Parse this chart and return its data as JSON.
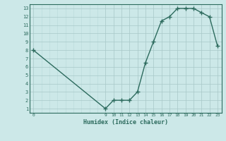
{
  "x": [
    0,
    9,
    10,
    11,
    12,
    13,
    14,
    15,
    16,
    17,
    18,
    19,
    20,
    21,
    22,
    23
  ],
  "y": [
    8,
    1,
    2,
    2,
    2,
    3,
    6.5,
    9,
    11.5,
    12,
    13,
    13,
    13,
    12.5,
    12,
    8.5
  ],
  "line_color": "#2d6b5e",
  "bg_color": "#cce8e8",
  "xlabel": "Humidex (Indice chaleur)",
  "xlim": [
    -0.5,
    23.5
  ],
  "ylim": [
    0.5,
    13.5
  ],
  "yticks": [
    1,
    2,
    3,
    4,
    5,
    6,
    7,
    8,
    9,
    10,
    11,
    12,
    13
  ],
  "xticks": [
    0,
    9,
    10,
    11,
    12,
    13,
    14,
    15,
    16,
    17,
    18,
    19,
    20,
    21,
    22,
    23
  ],
  "marker": "+",
  "marker_size": 4,
  "line_width": 1.0
}
